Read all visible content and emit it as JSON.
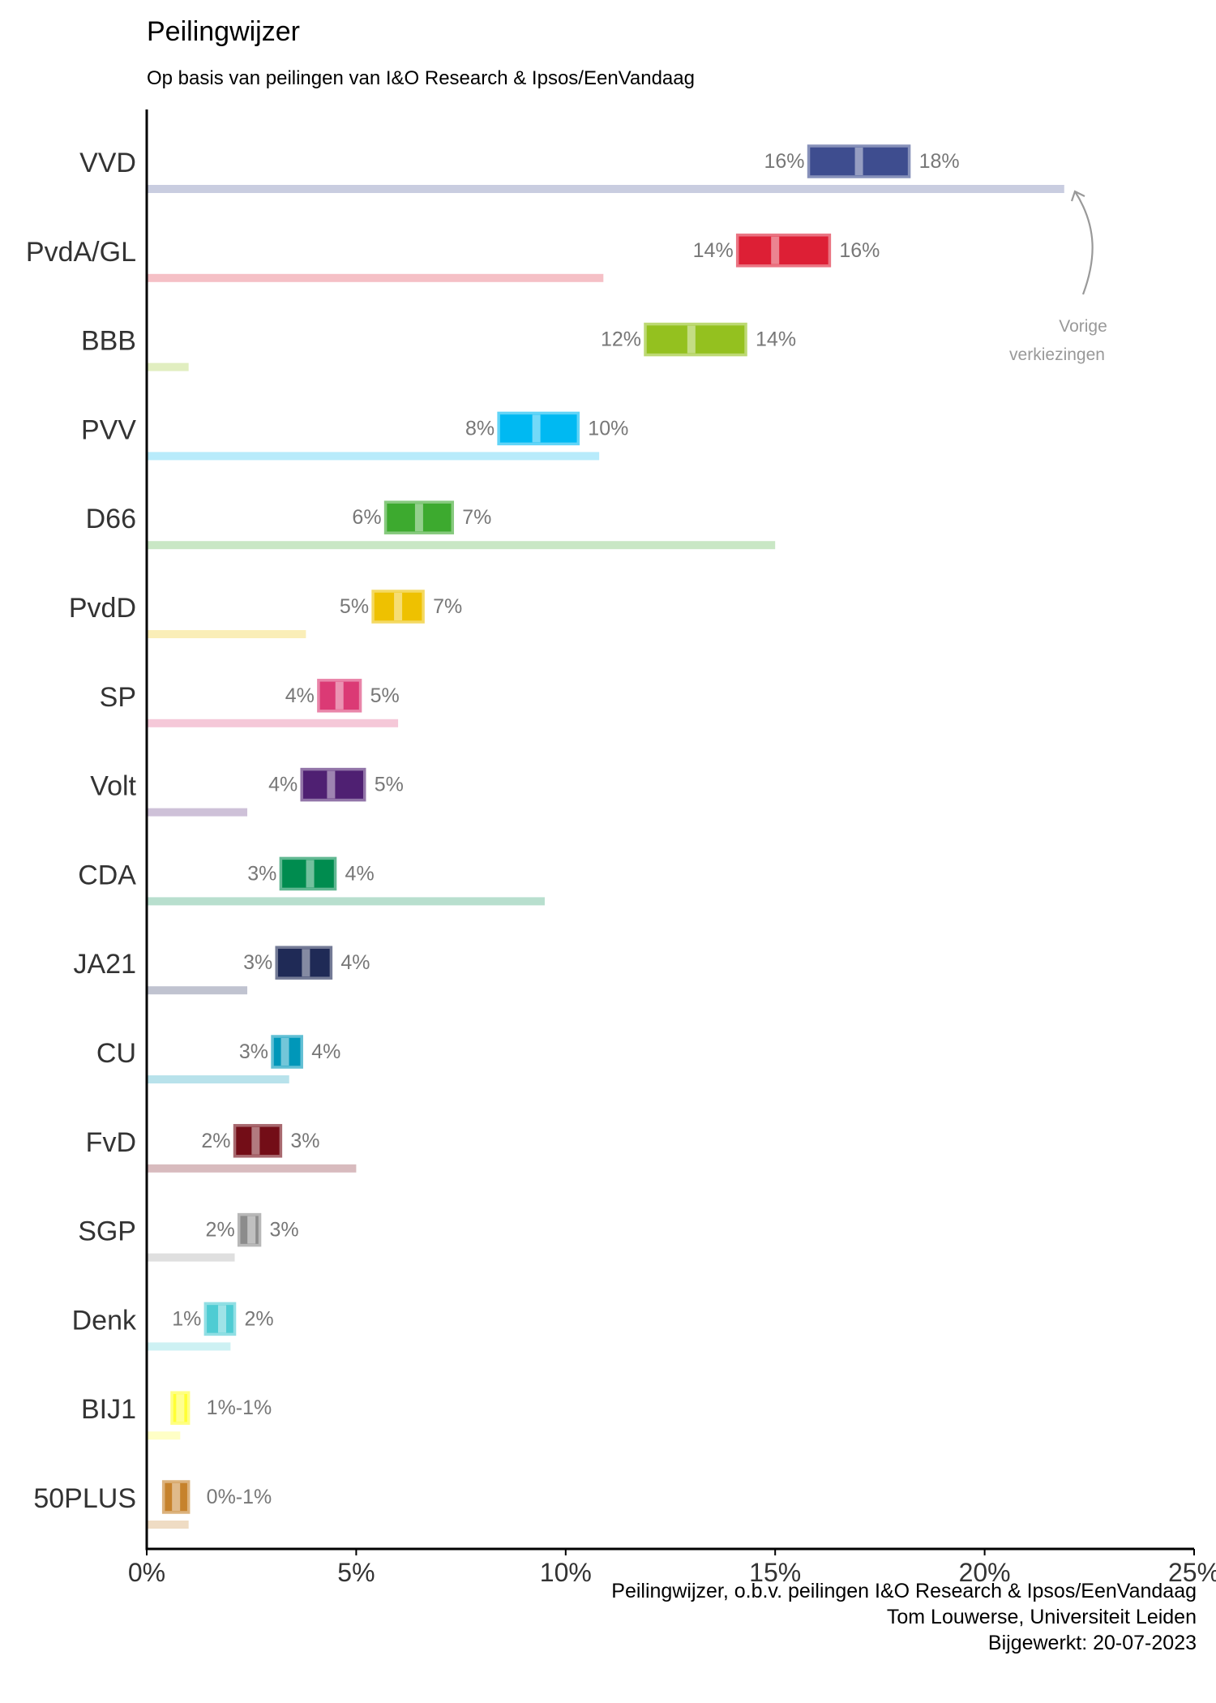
{
  "title": "Peilingwijzer",
  "subtitle": "Op basis van peilingen van I&O Research & Ipsos/EenVandaag",
  "annotation": {
    "line1": "Vorige",
    "line2": "verkiezingen"
  },
  "caption": {
    "line1": "Peilingwijzer, o.b.v. peilingen I&O Research & Ipsos/EenVandaag",
    "line2": "Tom Louwerse, Universiteit Leiden",
    "line3": "Bijgewerkt: 20-07-2023"
  },
  "chart_data": {
    "type": "bar",
    "title": "Peilingwijzer",
    "subtitle": "Op basis van peilingen van I&O Research & Ipsos/EenVandaag",
    "xlim": [
      0,
      25
    ],
    "x_ticks": [
      0,
      5,
      10,
      15,
      20,
      25
    ],
    "x_tick_labels": [
      "0%",
      "5%",
      "10%",
      "15%",
      "20%",
      "25%"
    ],
    "grid": false,
    "parties": [
      {
        "name": "VVD",
        "color": "#3E4D8F",
        "low": 15.8,
        "high": 18.2,
        "mid": 17.0,
        "low_label": "16%",
        "high_label": "18%",
        "previous": 21.9
      },
      {
        "name": "PvdA/GL",
        "color": "#DD1F35",
        "low": 14.1,
        "high": 16.3,
        "mid": 15.0,
        "low_label": "14%",
        "high_label": "16%",
        "previous": 10.9
      },
      {
        "name": "BBB",
        "color": "#94C11F",
        "low": 11.9,
        "high": 14.3,
        "mid": 13.0,
        "low_label": "12%",
        "high_label": "14%",
        "previous": 1.0
      },
      {
        "name": "PVV",
        "color": "#00B9F2",
        "low": 8.4,
        "high": 10.3,
        "mid": 9.3,
        "low_label": "8%",
        "high_label": "10%",
        "previous": 10.8
      },
      {
        "name": "D66",
        "color": "#3DAA2F",
        "low": 5.7,
        "high": 7.3,
        "mid": 6.5,
        "low_label": "6%",
        "high_label": "7%",
        "previous": 15.0
      },
      {
        "name": "PvdD",
        "color": "#EEC101",
        "low": 5.4,
        "high": 6.6,
        "mid": 6.0,
        "low_label": "5%",
        "high_label": "7%",
        "previous": 3.8
      },
      {
        "name": "SP",
        "color": "#DB3A75",
        "low": 4.1,
        "high": 5.1,
        "mid": 4.6,
        "low_label": "4%",
        "high_label": "5%",
        "previous": 6.0
      },
      {
        "name": "Volt",
        "color": "#4F2072",
        "low": 3.7,
        "high": 5.2,
        "mid": 4.4,
        "low_label": "4%",
        "high_label": "5%",
        "previous": 2.4
      },
      {
        "name": "CDA",
        "color": "#008C4F",
        "low": 3.2,
        "high": 4.5,
        "mid": 3.9,
        "low_label": "3%",
        "high_label": "4%",
        "previous": 9.5
      },
      {
        "name": "JA21",
        "color": "#1F2A56",
        "low": 3.1,
        "high": 4.4,
        "mid": 3.8,
        "low_label": "3%",
        "high_label": "4%",
        "previous": 2.4
      },
      {
        "name": "CU",
        "color": "#0097B9",
        "low": 3.0,
        "high": 3.7,
        "mid": 3.3,
        "low_label": "3%",
        "high_label": "4%",
        "previous": 3.4
      },
      {
        "name": "FvD",
        "color": "#730D17",
        "low": 2.1,
        "high": 3.2,
        "mid": 2.6,
        "low_label": "2%",
        "high_label": "3%",
        "previous": 5.0
      },
      {
        "name": "SGP",
        "color": "#8C8C8C",
        "low": 2.2,
        "high": 2.7,
        "mid": 2.5,
        "low_label": "2%",
        "high_label": "3%",
        "previous": 2.1
      },
      {
        "name": "Denk",
        "color": "#4ECCD3",
        "low": 1.4,
        "high": 2.1,
        "mid": 1.8,
        "low_label": "1%",
        "high_label": "2%",
        "previous": 2.0
      },
      {
        "name": "BIJ1",
        "color": "#FFFF35",
        "low": 0.6,
        "high": 1.0,
        "mid": 0.8,
        "range_label": "1%-1%",
        "previous": 0.8
      },
      {
        "name": "50PLUS",
        "color": "#C6822C",
        "low": 0.4,
        "high": 1.0,
        "mid": 0.7,
        "range_label": "0%-1%",
        "previous": 1.0
      }
    ]
  }
}
